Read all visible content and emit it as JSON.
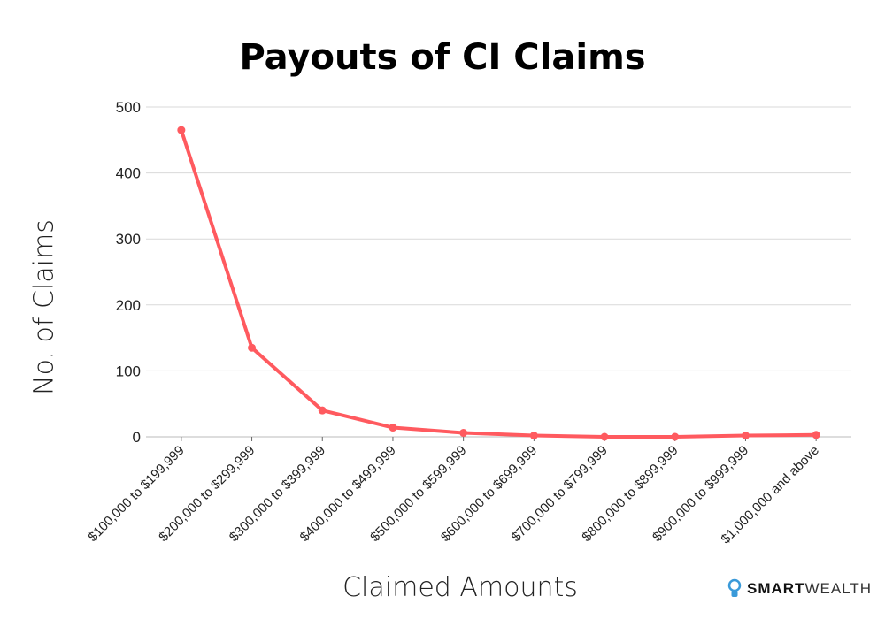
{
  "chart_data": {
    "type": "line",
    "title": "Payouts of CI Claims",
    "xlabel": "Claimed Amounts",
    "ylabel": "No. of Claims",
    "categories": [
      "$100,000 to $199,999",
      "$200,000 to $299,999",
      "$300,000 to $399,999",
      "$400,000 to $499,999",
      "$500,000 to $599,999",
      "$600,000 to $699,999",
      "$700,000 to $799,999",
      "$800,000 to $899,999",
      "$900,000 to $999,999",
      "$1,000,000 and above"
    ],
    "values": [
      465,
      135,
      40,
      14,
      6,
      2,
      0,
      0,
      2,
      3
    ],
    "ylim": [
      0,
      500
    ],
    "yticks": [
      0,
      100,
      200,
      300,
      400,
      500
    ],
    "grid": true,
    "legend": "none",
    "color": "#ff5a5f"
  },
  "branding": {
    "logo_bold": "SMART",
    "logo_light": "WEALTH",
    "logo_color": "#3a9ad9"
  }
}
